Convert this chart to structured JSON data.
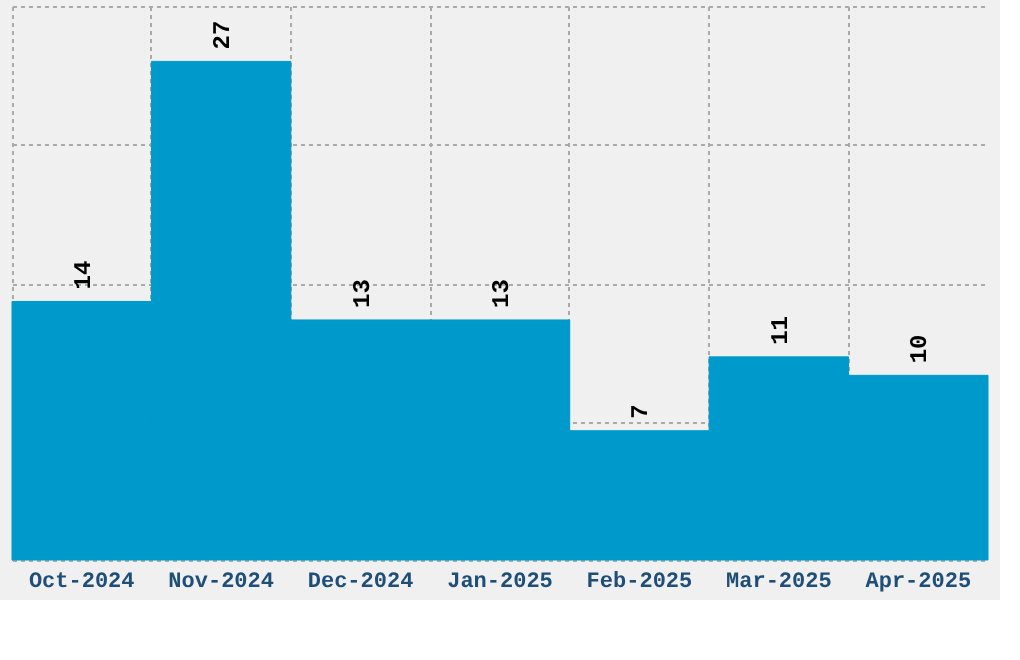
{
  "chart_data": {
    "type": "bar",
    "categories": [
      "Oct-2024",
      "Nov-2024",
      "Dec-2024",
      "Jan-2025",
      "Feb-2025",
      "Mar-2025",
      "Apr-2025"
    ],
    "values": [
      14,
      27,
      13,
      13,
      7,
      11,
      10
    ],
    "color": "#0099cc",
    "ylim": [
      0,
      30
    ],
    "yticks": [
      {
        "value": 0,
        "label": null
      },
      {
        "value": 7.5,
        "label": null
      },
      {
        "value": 15,
        "label": null
      },
      {
        "value": 22.5,
        "label": null
      },
      {
        "value": 30,
        "label": null
      }
    ],
    "tick_labels": "x",
    "grid": true,
    "data_labels": true
  }
}
